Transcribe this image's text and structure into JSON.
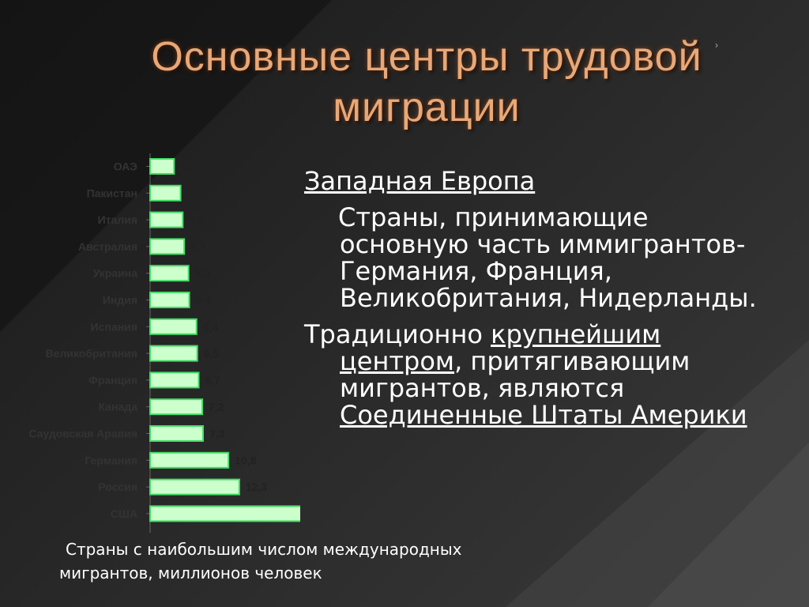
{
  "slide": {
    "title": "Основные центры трудовой миграции",
    "heading": "Западная Европа",
    "paragraph1": "Страны, принимающие основную часть иммигрантов- Германия, Франция, Великобритания, Нидерланды.",
    "paragraph2_parts": [
      "Традиционно ",
      "крупнейшим центром",
      ", притягивающим мигрантов, являются ",
      "Соединенные Штаты Америки"
    ],
    "caption_line1": "Страны с наибольшим числом международных",
    "caption_line2": "мигрантов, миллионов человек",
    "nav_icon": "chevron-right-icon"
  },
  "colors": {
    "title": "#e8a878",
    "bar_fill": "#ccffcc",
    "bar_stroke": "#44dd66",
    "label_text": "#333333",
    "value_text": "#222222"
  },
  "chart_data": {
    "type": "bar",
    "orientation": "horizontal",
    "categories": [
      "ОАЭ",
      "Пакистан",
      "Италия",
      "Австралия",
      "Украина",
      "Индия",
      "Испания",
      "Великобритания",
      "Франция",
      "Канада",
      "Саудовская Аравия",
      "Германия",
      "Россия",
      "США"
    ],
    "values": [
      3.3,
      4.2,
      4.5,
      4.7,
      5.3,
      5.4,
      6.4,
      6.5,
      6.7,
      7.2,
      7.3,
      10.8,
      12.3,
      42.8
    ],
    "data_labels": [
      "3,3",
      "4,2",
      "4,5",
      "4,7",
      "5,3",
      "5,4",
      "6,4",
      "6,5",
      "6,7",
      "7,2",
      "7,3",
      "10,8",
      "12,3",
      "42,8"
    ],
    "xlim": [
      0,
      42.8
    ],
    "grid": false,
    "legend": "none"
  }
}
